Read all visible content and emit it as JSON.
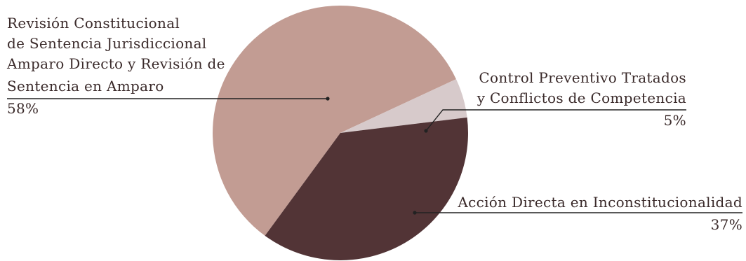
{
  "chart_data": {
    "type": "pie",
    "slices": [
      {
        "label_lines": [
          "Revisión Constitucional",
          "de Sentencia Jurisdiccional",
          "Amparo Directo y Revisión de",
          "Sentencia en Amparo"
        ],
        "value": 58,
        "value_label": "58%",
        "color": "#c29c93"
      },
      {
        "label_lines": [
          "Control Preventivo Tratados",
          "y Conflictos de Competencia"
        ],
        "value": 5,
        "value_label": "5%",
        "color": "#d7cacb"
      },
      {
        "label_lines": [
          "Acción Directa en Inconstitucionalidad"
        ],
        "value": 37,
        "value_label": "37%",
        "color": "#523436"
      }
    ]
  }
}
